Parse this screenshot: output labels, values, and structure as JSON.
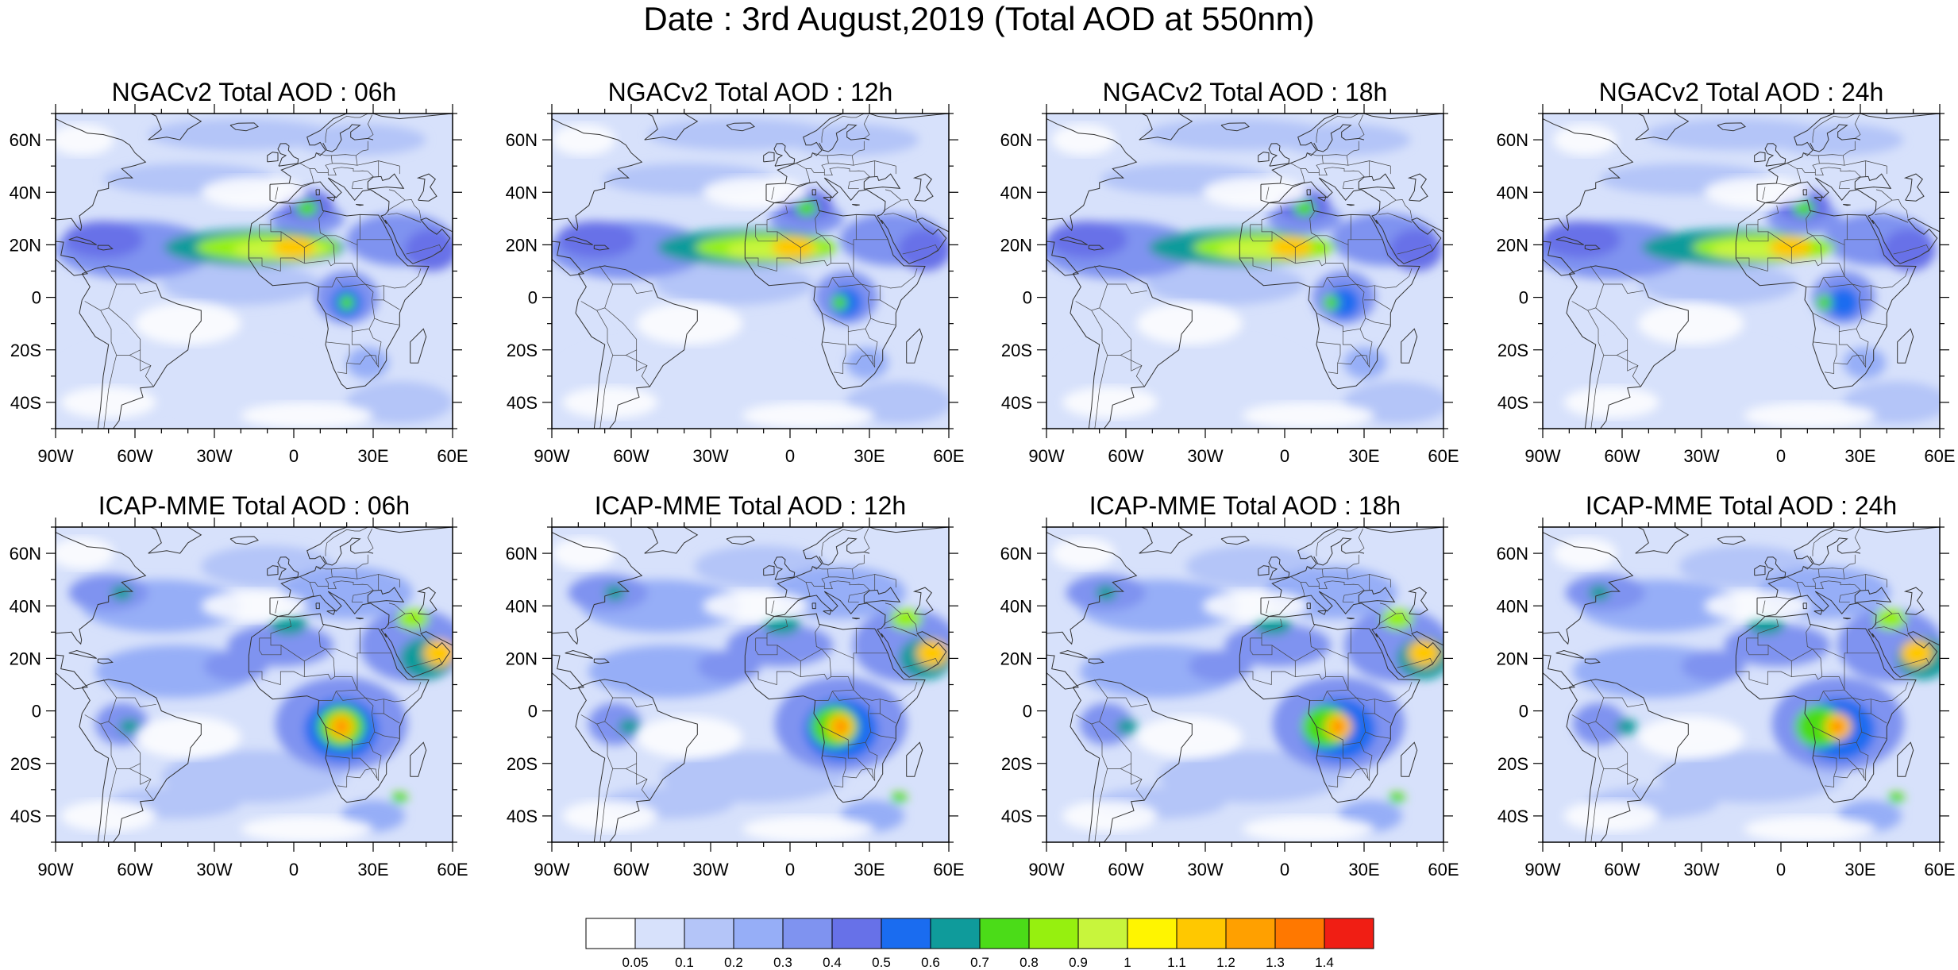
{
  "figure": {
    "title": "Date : 3rd August,2019 (Total AOD at 550nm)"
  },
  "map_extent": {
    "lon": [
      -90,
      60
    ],
    "lat": [
      -50,
      70
    ]
  },
  "axis_labels": {
    "lon": [
      {
        "value": -90,
        "label": "90W"
      },
      {
        "value": -60,
        "label": "60W"
      },
      {
        "value": -30,
        "label": "30W"
      },
      {
        "value": 0,
        "label": "0"
      },
      {
        "value": 30,
        "label": "30E"
      },
      {
        "value": 60,
        "label": "60E"
      }
    ],
    "lat": [
      {
        "value": 60,
        "label": "60N"
      },
      {
        "value": 40,
        "label": "40N"
      },
      {
        "value": 20,
        "label": "20N"
      },
      {
        "value": 0,
        "label": "0"
      },
      {
        "value": -20,
        "label": "20S"
      },
      {
        "value": -40,
        "label": "40S"
      }
    ]
  },
  "panels": [
    {
      "title": "NGACv2 Total AOD : 06h",
      "model": "NGAC",
      "hour": 6
    },
    {
      "title": "NGACv2 Total AOD : 12h",
      "model": "NGAC",
      "hour": 12
    },
    {
      "title": "NGACv2 Total AOD : 18h",
      "model": "NGAC",
      "hour": 18
    },
    {
      "title": "NGACv2 Total AOD : 24h",
      "model": "NGAC",
      "hour": 24
    },
    {
      "title": "ICAP-MME Total AOD : 06h",
      "model": "ICAP",
      "hour": 6
    },
    {
      "title": "ICAP-MME Total AOD : 12h",
      "model": "ICAP",
      "hour": 12
    },
    {
      "title": "ICAP-MME Total AOD : 18h",
      "model": "ICAP",
      "hour": 18
    },
    {
      "title": "ICAP-MME Total AOD : 24h",
      "model": "ICAP",
      "hour": 24
    }
  ],
  "colorbar": {
    "levels": [
      "0.05",
      "0.1",
      "0.2",
      "0.3",
      "0.4",
      "0.5",
      "0.6",
      "0.7",
      "0.8",
      "0.9",
      "1",
      "1.1",
      "1.2",
      "1.3",
      "1.4"
    ],
    "colors": [
      "#ffffff",
      "#d7e1fb",
      "#b4c5f8",
      "#96aef7",
      "#7f93f0",
      "#6771e8",
      "#1a6cf0",
      "#0f9b9b",
      "#4bdc18",
      "#96f00f",
      "#c8f53c",
      "#fff500",
      "#ffc800",
      "#ffa000",
      "#ff7800",
      "#f01e14"
    ]
  }
}
